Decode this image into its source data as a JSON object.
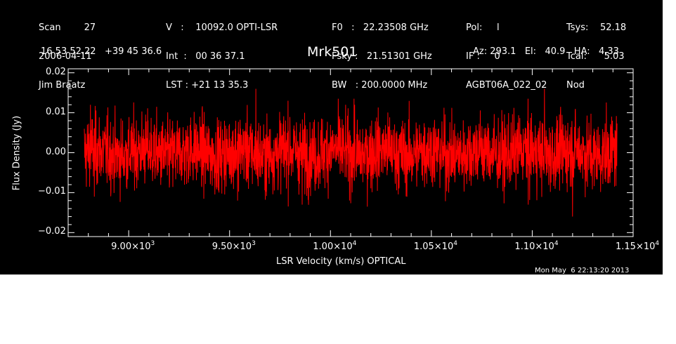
{
  "header": {
    "col1": [
      "Scan        27",
      "2006-04-11",
      "Jim Braatz"
    ],
    "col2": [
      "V   :    10092.0 OPTI-LSR",
      "Int  :   00 36 37.1",
      "LST : +21 13 35.3"
    ],
    "col3": [
      "F0   :   22.23508 GHz",
      "Fsky :   21.51301 GHz",
      "BW   : 200.0000 MHz"
    ],
    "col4": [
      "Pol:     l",
      "IF :     0",
      "AGBT06A_022_02"
    ],
    "col5": [
      "Tsys:    52.18",
      "Tcal:      5.03",
      "Nod"
    ],
    "coords": "16 53 52.22   +39 45 36.6",
    "pointing": "Az: 293.1   El:   40.9   HA:   4.33"
  },
  "timestamp": "Mon May  6 22:13:20 2013",
  "colors": {
    "background": "#000000",
    "axes": "#ffffff",
    "series": "#ff0000"
  },
  "chart_data": {
    "type": "line",
    "title": "Mrk501",
    "xlabel": "LSR Velocity (km/s) OPTICAL",
    "ylabel": "Flux Density (Jy)",
    "xlim": [
      8700,
      11500
    ],
    "ylim": [
      -0.021,
      0.021
    ],
    "x_ticks": [
      {
        "value": 9000,
        "mant": "9.00",
        "exp": "3"
      },
      {
        "value": 9500,
        "mant": "9.50",
        "exp": "3"
      },
      {
        "value": 10000,
        "mant": "1.00",
        "exp": "4"
      },
      {
        "value": 10500,
        "mant": "1.05",
        "exp": "4"
      },
      {
        "value": 11000,
        "mant": "1.10",
        "exp": "4"
      },
      {
        "value": 11500,
        "mant": "1.15",
        "exp": "4"
      }
    ],
    "y_ticks": [
      {
        "value": 0.02,
        "label": "0.02"
      },
      {
        "value": 0.01,
        "label": "0.01"
      },
      {
        "value": 0.0,
        "label": "0.00"
      },
      {
        "value": -0.01,
        "label": "−0.01"
      },
      {
        "value": -0.02,
        "label": "−0.02"
      }
    ],
    "series": [
      {
        "x_range": [
          8780,
          11420
        ],
        "noise_rms": 0.0045,
        "peaks": [
          {
            "x": 8810,
            "y": 0.012
          },
          {
            "x": 8830,
            "y": -0.011
          },
          {
            "x": 9630,
            "y": 0.016
          },
          {
            "x": 9790,
            "y": 0.013
          },
          {
            "x": 9860,
            "y": -0.013
          },
          {
            "x": 10980,
            "y": -0.013
          },
          {
            "x": 11060,
            "y": 0.016
          },
          {
            "x": 11200,
            "y": -0.016
          },
          {
            "x": 10120,
            "y": 0.012
          },
          {
            "x": 9540,
            "y": -0.012
          }
        ]
      }
    ],
    "grid": false,
    "legend": "none"
  }
}
